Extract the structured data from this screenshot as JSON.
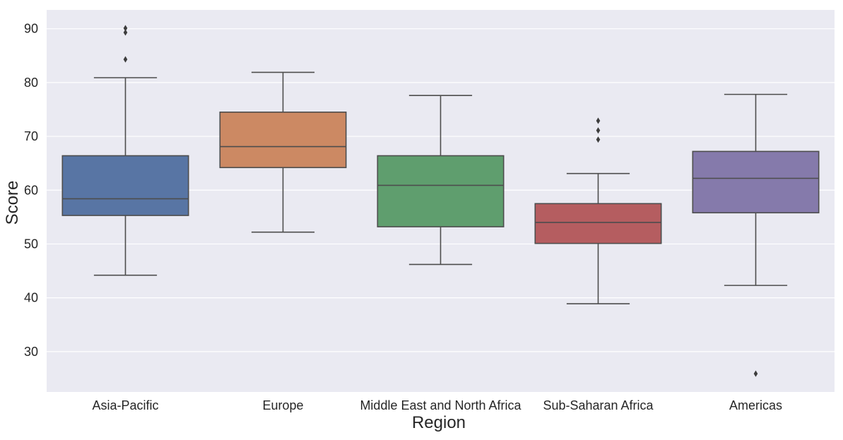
{
  "chart_data": {
    "type": "box",
    "xlabel": "Region",
    "ylabel": "Score",
    "ylim": [
      22.5,
      93.5
    ],
    "yticks": [
      30,
      40,
      50,
      60,
      70,
      80,
      90
    ],
    "grid": true,
    "background": "#eaeaf2",
    "categories": [
      "Asia-Pacific",
      "Europe",
      "Middle East and North Africa",
      "Sub-Saharan Africa",
      "Americas"
    ],
    "boxes": [
      {
        "category": "Asia-Pacific",
        "color": "#5875a4",
        "whisker_low": 44.2,
        "q1": 55.3,
        "median": 58.4,
        "q3": 66.4,
        "whisker_high": 80.9,
        "outliers": [
          84.3,
          89.3,
          90.1
        ]
      },
      {
        "category": "Europe",
        "color": "#cc8963",
        "whisker_low": 52.2,
        "q1": 64.2,
        "median": 68.1,
        "q3": 74.5,
        "whisker_high": 81.9,
        "outliers": []
      },
      {
        "category": "Middle East and North Africa",
        "color": "#5f9e6e",
        "whisker_low": 46.2,
        "q1": 53.2,
        "median": 60.9,
        "q3": 66.4,
        "whisker_high": 77.6,
        "outliers": []
      },
      {
        "category": "Sub-Saharan Africa",
        "color": "#b55d60",
        "whisker_low": 38.9,
        "q1": 50.1,
        "median": 54.0,
        "q3": 57.5,
        "whisker_high": 63.1,
        "outliers": [
          69.4,
          71.1,
          72.9
        ]
      },
      {
        "category": "Americas",
        "color": "#857aab",
        "whisker_low": 42.3,
        "q1": 55.8,
        "median": 62.2,
        "q3": 67.2,
        "whisker_high": 77.8,
        "outliers": [
          25.9
        ]
      }
    ]
  }
}
